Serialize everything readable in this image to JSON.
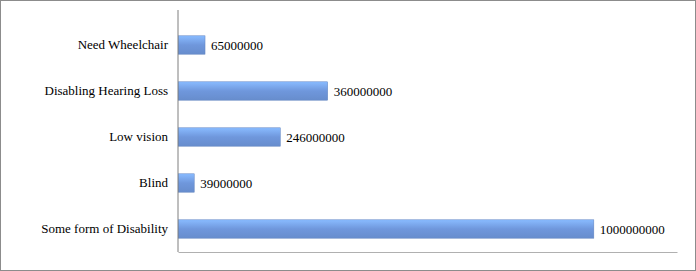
{
  "chart_data": {
    "type": "bar",
    "orientation": "horizontal",
    "categories": [
      "Need Wheelchair",
      "Disabling Hearing Loss",
      "Low vision",
      "Blind",
      "Some form of Disability"
    ],
    "values": [
      65000000,
      360000000,
      246000000,
      39000000,
      1000000000
    ],
    "color": "#6f97dc",
    "xlim": [
      0,
      1200000000
    ],
    "xticks": [],
    "data_labels": true,
    "tick_labels": "y",
    "grid": false
  }
}
